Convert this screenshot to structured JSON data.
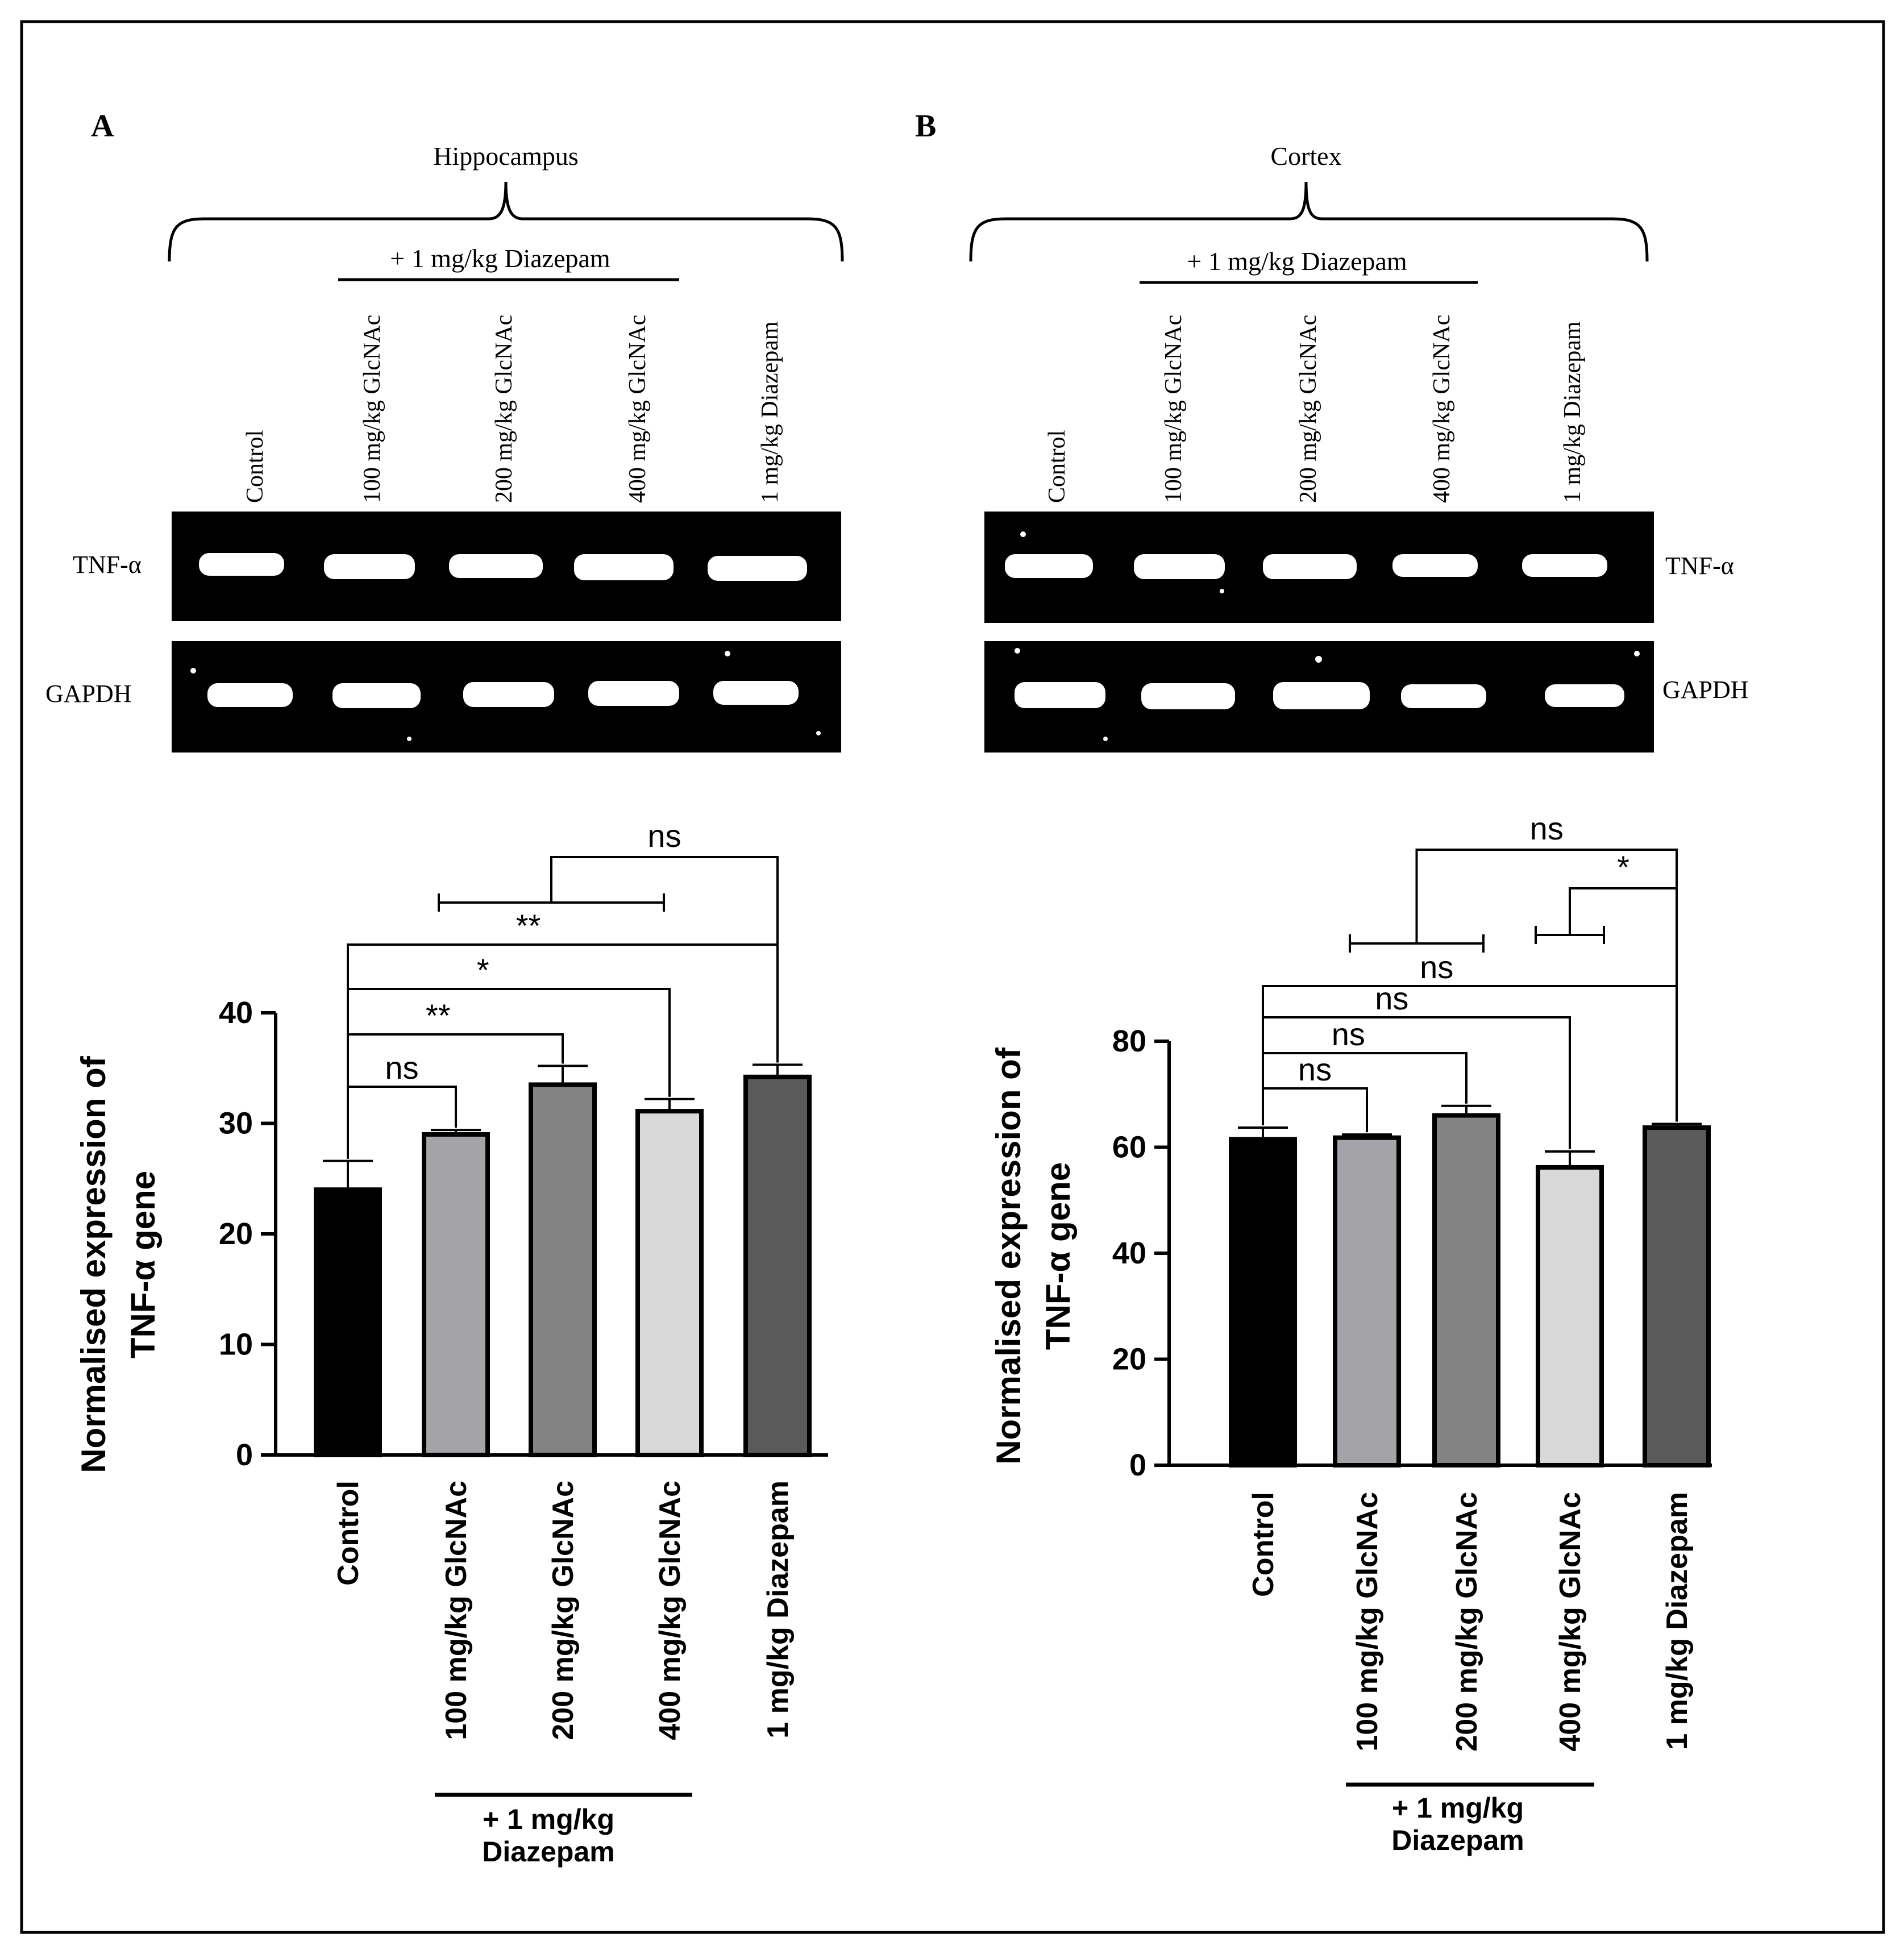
{
  "panels": [
    {
      "letter": "A",
      "region": "Hippocampus",
      "group_label": "+ 1 mg/kg Diazepam",
      "lanes": [
        "Control",
        "100 mg/kg GlcNAc",
        "200 mg/kg GlcNAc",
        "400 mg/kg GlcNAc",
        "1 mg/kg Diazepam"
      ],
      "blot_labels": [
        "TNF-α",
        "GAPDH"
      ],
      "bottom_group": [
        "+ 1 mg/kg",
        "Diazepam"
      ]
    },
    {
      "letter": "B",
      "region": "Cortex",
      "group_label": "+ 1 mg/kg Diazepam",
      "lanes": [
        "Control",
        "100 mg/kg GlcNAc",
        "200 mg/kg GlcNAc",
        "400 mg/kg GlcNAc",
        "1 mg/kg Diazepam"
      ],
      "blot_labels": [
        "TNF-α",
        "GAPDH"
      ],
      "bottom_group": [
        "+ 1 mg/kg",
        "Diazepam"
      ]
    }
  ],
  "chart_data": [
    {
      "type": "bar",
      "ylabel": [
        "Normalised expression of",
        "TNF-α gene"
      ],
      "categories": [
        "Control",
        "100 mg/kg GlcNAc",
        "200 mg/kg GlcNAc",
        "400 mg/kg GlcNAc",
        "1 mg/kg Diazepam"
      ],
      "values": [
        24.0,
        29.0,
        33.5,
        31.1,
        34.2
      ],
      "errors": [
        2.6,
        0.4,
        1.7,
        1.1,
        1.1
      ],
      "bar_colors": [
        "#000000",
        "#a3a3a8",
        "#838383",
        "#d8d8d8",
        "#5a5a5a"
      ],
      "ylim": [
        0,
        40
      ],
      "yticks": [
        0,
        10,
        20,
        30,
        40
      ],
      "comparisons": [
        {
          "from": 0,
          "to": 1,
          "label": "ns"
        },
        {
          "from": 0,
          "to": 2,
          "label": "**"
        },
        {
          "from": 0,
          "to": 3,
          "label": "*"
        },
        {
          "from": 0,
          "to": 4,
          "label": "**"
        },
        {
          "from_range": [
            1,
            3
          ],
          "to": 4,
          "label": "ns"
        }
      ]
    },
    {
      "type": "bar",
      "ylabel": [
        "Normalised expression of",
        "TNF-α gene"
      ],
      "categories": [
        "Control",
        "100 mg/kg GlcNAc",
        "200 mg/kg GlcNAc",
        "400 mg/kg GlcNAc",
        "1 mg/kg Diazepam"
      ],
      "values": [
        61.5,
        61.8,
        66.0,
        56.2,
        63.7
      ],
      "errors": [
        2.2,
        0.6,
        1.8,
        3.0,
        0.7
      ],
      "bar_colors": [
        "#000000",
        "#a3a3a8",
        "#838383",
        "#d8d8d8",
        "#5a5a5a"
      ],
      "ylim": [
        0,
        80
      ],
      "yticks": [
        0,
        20,
        40,
        60,
        80
      ],
      "comparisons": [
        {
          "from": 0,
          "to": 1,
          "label": "ns"
        },
        {
          "from": 0,
          "to": 2,
          "label": "ns"
        },
        {
          "from": 0,
          "to": 3,
          "label": "ns"
        },
        {
          "from": 0,
          "to": 4,
          "label": "ns"
        },
        {
          "from_range": [
            1,
            2
          ],
          "to": 4,
          "label": "ns"
        },
        {
          "from_range": [
            3,
            3
          ],
          "to": 4,
          "label": "*"
        }
      ]
    }
  ]
}
